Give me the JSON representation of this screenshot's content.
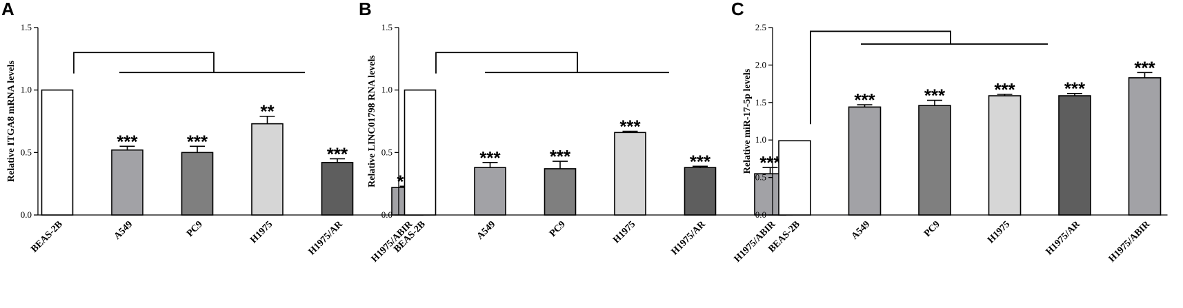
{
  "chart_data": [
    {
      "panel": "A",
      "type": "bar",
      "ylabel": "Relative ITGA8 mRNA levels",
      "ylim": [
        0,
        1.5
      ],
      "yticks": [
        "0.0",
        "0.5",
        "1.0",
        "1.5"
      ],
      "categories": [
        "BEAS-2B",
        "A549",
        "PC9",
        "H1975",
        "H1975/AR",
        "H1975/ABIR"
      ],
      "values": [
        1.0,
        0.52,
        0.5,
        0.73,
        0.42,
        0.22
      ],
      "errors": [
        0,
        0.03,
        0.05,
        0.06,
        0.03,
        0.01
      ],
      "significance": [
        "",
        "***",
        "***",
        "**",
        "***",
        "***"
      ],
      "bracket_y": [
        1.3,
        1.14
      ],
      "colors": [
        "#ffffff",
        "#a2a2a6",
        "#7f7f7f",
        "#d6d6d6",
        "#5e5e5e",
        "#a2a2a6"
      ]
    },
    {
      "panel": "B",
      "type": "bar",
      "ylabel": "Relative LINC01798 RNA levels",
      "ylim": [
        0,
        1.5
      ],
      "yticks": [
        "0.0",
        "0.5",
        "1.0",
        "1.5"
      ],
      "categories": [
        "BEAS-2B",
        "A549",
        "PC9",
        "H1975",
        "H1975/AR",
        "H1975/ABIR"
      ],
      "values": [
        1.0,
        0.38,
        0.37,
        0.66,
        0.38,
        0.33
      ],
      "errors": [
        0,
        0.04,
        0.06,
        0.01,
        0.01,
        0.05
      ],
      "significance": [
        "",
        "***",
        "***",
        "***",
        "***",
        "***"
      ],
      "bracket_y": [
        1.3,
        1.14
      ],
      "colors": [
        "#ffffff",
        "#a2a2a6",
        "#7f7f7f",
        "#d6d6d6",
        "#5e5e5e",
        "#a2a2a6"
      ]
    },
    {
      "panel": "C",
      "type": "bar",
      "ylabel": "Relative miR-17-5p levels",
      "ylim": [
        0,
        2.5
      ],
      "yticks": [
        "0.0",
        "0.5",
        "1.0",
        "1.5",
        "2.0",
        "2.5"
      ],
      "categories": [
        "BEAS-2B",
        "A549",
        "PC9",
        "H1975",
        "H1975/AR",
        "H1975/ABIR"
      ],
      "values": [
        0.99,
        1.44,
        1.46,
        1.59,
        1.59,
        1.83
      ],
      "errors": [
        0,
        0.03,
        0.07,
        0.02,
        0.03,
        0.07
      ],
      "significance": [
        "",
        "***",
        "***",
        "***",
        "***",
        "***"
      ],
      "bracket_y": [
        2.45,
        2.28
      ],
      "colors": [
        "#ffffff",
        "#a2a2a6",
        "#7f7f7f",
        "#d6d6d6",
        "#5e5e5e",
        "#a2a2a6"
      ]
    }
  ]
}
